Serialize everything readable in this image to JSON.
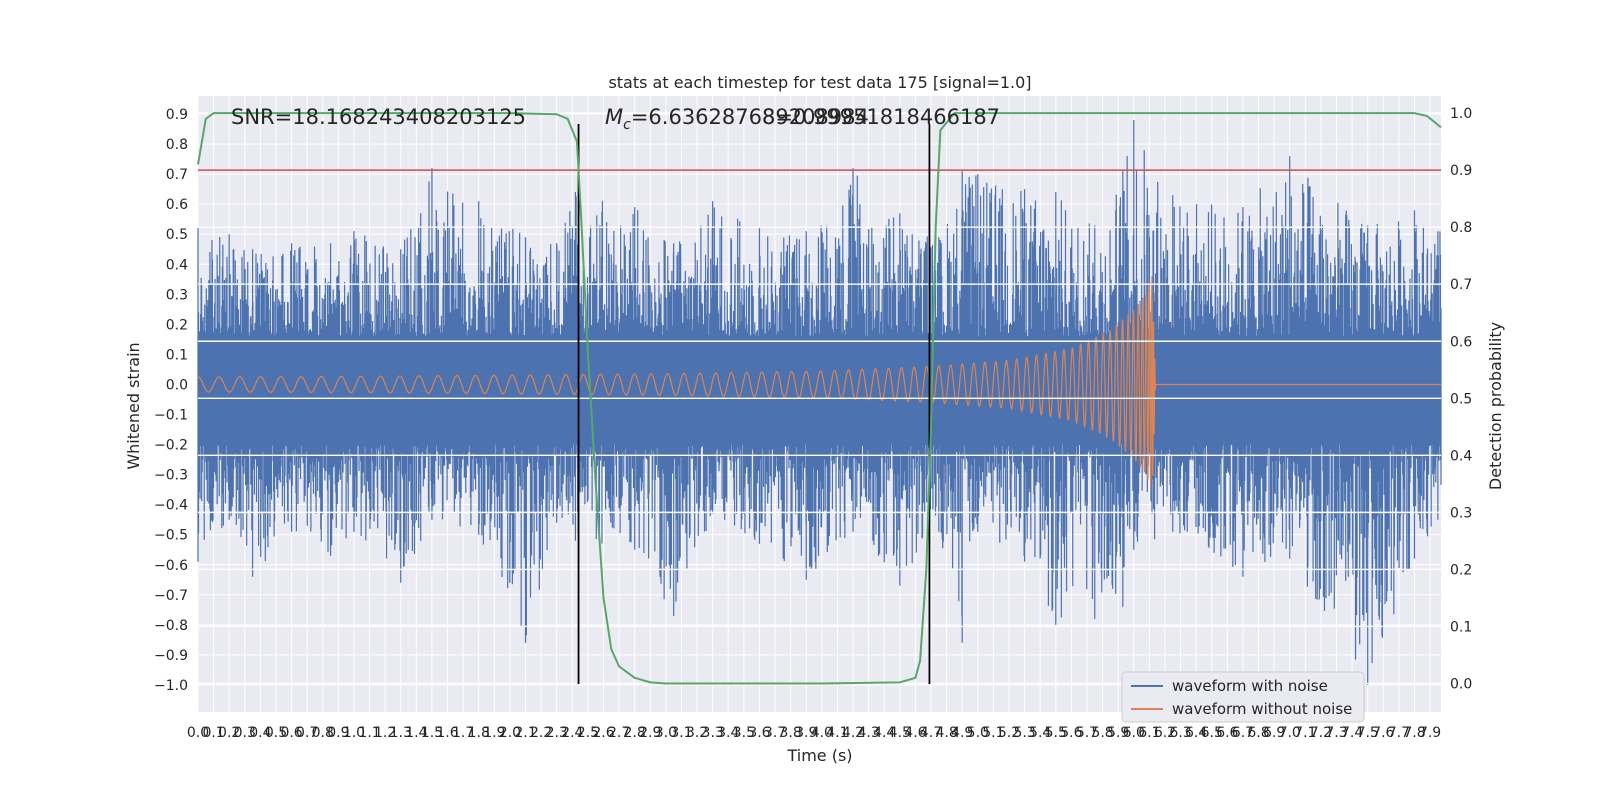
{
  "chart_data": {
    "type": "line",
    "title": "stats at each timestep for test data 175 [signal=1.0]",
    "xlabel": "Time (s)",
    "ylabel_left": "Whitened strain",
    "ylabel_right": "Detection probability",
    "xlim": [
      0.0,
      7.97
    ],
    "ylim_left": [
      -1.09,
      0.96
    ],
    "ylim_right": [
      -0.05,
      1.03
    ],
    "x_ticks": [
      "0.0",
      "0.1",
      "0.2",
      "0.3",
      "0.4",
      "0.5",
      "0.6",
      "0.7",
      "0.8",
      "0.9",
      "1.0",
      "1.1",
      "1.2",
      "1.3",
      "1.4",
      "1.5",
      "1.6",
      "1.7",
      "1.8",
      "1.9",
      "2.0",
      "2.1",
      "2.2",
      "2.3",
      "2.4",
      "2.5",
      "2.6",
      "2.7",
      "2.8",
      "2.9",
      "3.0",
      "3.1",
      "3.2",
      "3.3",
      "3.4",
      "3.5",
      "3.6",
      "3.7",
      "3.8",
      "3.9",
      "4.0",
      "4.1",
      "4.2",
      "4.3",
      "4.4",
      "4.5",
      "4.6",
      "4.7",
      "4.8",
      "4.9",
      "5.0",
      "5.1",
      "5.2",
      "5.3",
      "5.4",
      "5.5",
      "5.6",
      "5.7",
      "5.8",
      "5.9",
      "6.0",
      "6.1",
      "6.2",
      "6.3",
      "6.4",
      "6.5",
      "6.6",
      "6.7",
      "6.8",
      "6.9",
      "7.0",
      "7.1",
      "7.2",
      "7.3",
      "7.4",
      "7.5",
      "7.6",
      "7.7",
      "7.8",
      "7.9"
    ],
    "y_ticks_left": [
      "0.9",
      "0.8",
      "0.7",
      "0.6",
      "0.5",
      "0.4",
      "0.3",
      "0.2",
      "0.1",
      "0.0",
      "−0.1",
      "−0.2",
      "−0.3",
      "−0.4",
      "−0.5",
      "−0.6",
      "−0.7",
      "−0.8",
      "−0.9",
      "−1.0"
    ],
    "y_ticks_right": [
      "1.0",
      "0.9",
      "0.8",
      "0.7",
      "0.6",
      "0.5",
      "0.4",
      "0.3",
      "0.2",
      "0.1",
      "0.0"
    ],
    "grid": true,
    "legend_position": "bottom-right",
    "series": [
      {
        "name": "waveform with noise",
        "color": "#4c72b0",
        "axis": "left",
        "envelope_peaks": [
          [
            0.0,
            0.52,
            -0.59
          ],
          [
            0.2,
            0.5,
            -0.45
          ],
          [
            0.35,
            0.45,
            -0.64
          ],
          [
            0.6,
            0.47,
            -0.49
          ],
          [
            0.85,
            0.47,
            -0.57
          ],
          [
            1.0,
            0.51,
            -0.49
          ],
          [
            1.3,
            0.45,
            -0.66
          ],
          [
            1.5,
            0.72,
            -0.45
          ],
          [
            1.8,
            0.61,
            -0.5
          ],
          [
            2.1,
            0.49,
            -0.86
          ],
          [
            2.3,
            0.47,
            -0.46
          ],
          [
            2.42,
            0.64,
            -0.52
          ],
          [
            2.8,
            0.59,
            -0.55
          ],
          [
            3.05,
            0.47,
            -0.77
          ],
          [
            3.3,
            0.61,
            -0.43
          ],
          [
            3.6,
            0.52,
            -0.53
          ],
          [
            3.9,
            0.51,
            -0.65
          ],
          [
            4.2,
            0.72,
            -0.49
          ],
          [
            4.5,
            0.57,
            -0.67
          ],
          [
            4.75,
            0.49,
            -0.49
          ],
          [
            4.9,
            0.71,
            -0.86
          ],
          [
            5.0,
            0.7,
            -0.49
          ],
          [
            5.3,
            0.65,
            -0.59
          ],
          [
            5.5,
            0.64,
            -0.8
          ],
          [
            5.75,
            0.53,
            -0.78
          ],
          [
            5.93,
            0.71,
            -0.74
          ],
          [
            6.0,
            0.88,
            -0.55
          ],
          [
            6.25,
            0.63,
            -0.49
          ],
          [
            6.7,
            0.59,
            -0.64
          ],
          [
            7.0,
            0.76,
            -0.58
          ],
          [
            7.5,
            0.53,
            -1.0
          ],
          [
            7.8,
            0.58,
            -0.58
          ],
          [
            7.95,
            0.51,
            -0.45
          ]
        ]
      },
      {
        "name": "waveform without noise",
        "color": "#dd8452",
        "axis": "left",
        "amplitude_envelope": [
          [
            0.0,
            0.025
          ],
          [
            1.0,
            0.027
          ],
          [
            2.0,
            0.031
          ],
          [
            3.0,
            0.036
          ],
          [
            4.0,
            0.045
          ],
          [
            4.7,
            0.06
          ],
          [
            5.2,
            0.08
          ],
          [
            5.6,
            0.12
          ],
          [
            5.85,
            0.18
          ],
          [
            6.0,
            0.25
          ],
          [
            6.08,
            0.3
          ],
          [
            6.12,
            0.37
          ],
          [
            6.14,
            0.0
          ],
          [
            7.97,
            0.0
          ]
        ],
        "merger_time": 6.13
      },
      {
        "name": "",
        "color": "#55a868",
        "axis": "right",
        "points": [
          [
            0.0,
            0.91
          ],
          [
            0.05,
            0.99
          ],
          [
            0.1,
            1.0
          ],
          [
            1.0,
            1.0
          ],
          [
            2.0,
            1.0
          ],
          [
            2.3,
            0.998
          ],
          [
            2.37,
            0.99
          ],
          [
            2.43,
            0.95
          ],
          [
            2.46,
            0.8
          ],
          [
            2.5,
            0.58
          ],
          [
            2.55,
            0.35
          ],
          [
            2.6,
            0.15
          ],
          [
            2.65,
            0.06
          ],
          [
            2.7,
            0.03
          ],
          [
            2.8,
            0.01
          ],
          [
            2.9,
            0.002
          ],
          [
            3.0,
            0.0
          ],
          [
            4.0,
            0.0
          ],
          [
            4.5,
            0.002
          ],
          [
            4.6,
            0.01
          ],
          [
            4.63,
            0.04
          ],
          [
            4.67,
            0.2
          ],
          [
            4.7,
            0.45
          ],
          [
            4.73,
            0.8
          ],
          [
            4.76,
            0.97
          ],
          [
            4.85,
            1.0
          ],
          [
            5.0,
            1.0
          ],
          [
            6.0,
            1.0
          ],
          [
            7.0,
            1.0
          ],
          [
            7.8,
            1.0
          ],
          [
            7.88,
            0.995
          ],
          [
            7.97,
            0.975
          ]
        ]
      }
    ],
    "threshold_line": {
      "y": 0.9,
      "axis": "right",
      "color": "#c44e52"
    },
    "vertical_lines": [
      2.44,
      4.69
    ],
    "annotations": [
      {
        "text": "SNR=18.168243408203125",
        "x": 0.18,
        "y": 0.87
      },
      {
        "text_symbol": "M",
        "text_sub": "c",
        "text": "=6.636287689208984",
        "x": 2.6,
        "y": 0.87
      },
      {
        "text": "8=0.99951818466187",
        "x": 3.6,
        "y": 0.87
      }
    ]
  }
}
